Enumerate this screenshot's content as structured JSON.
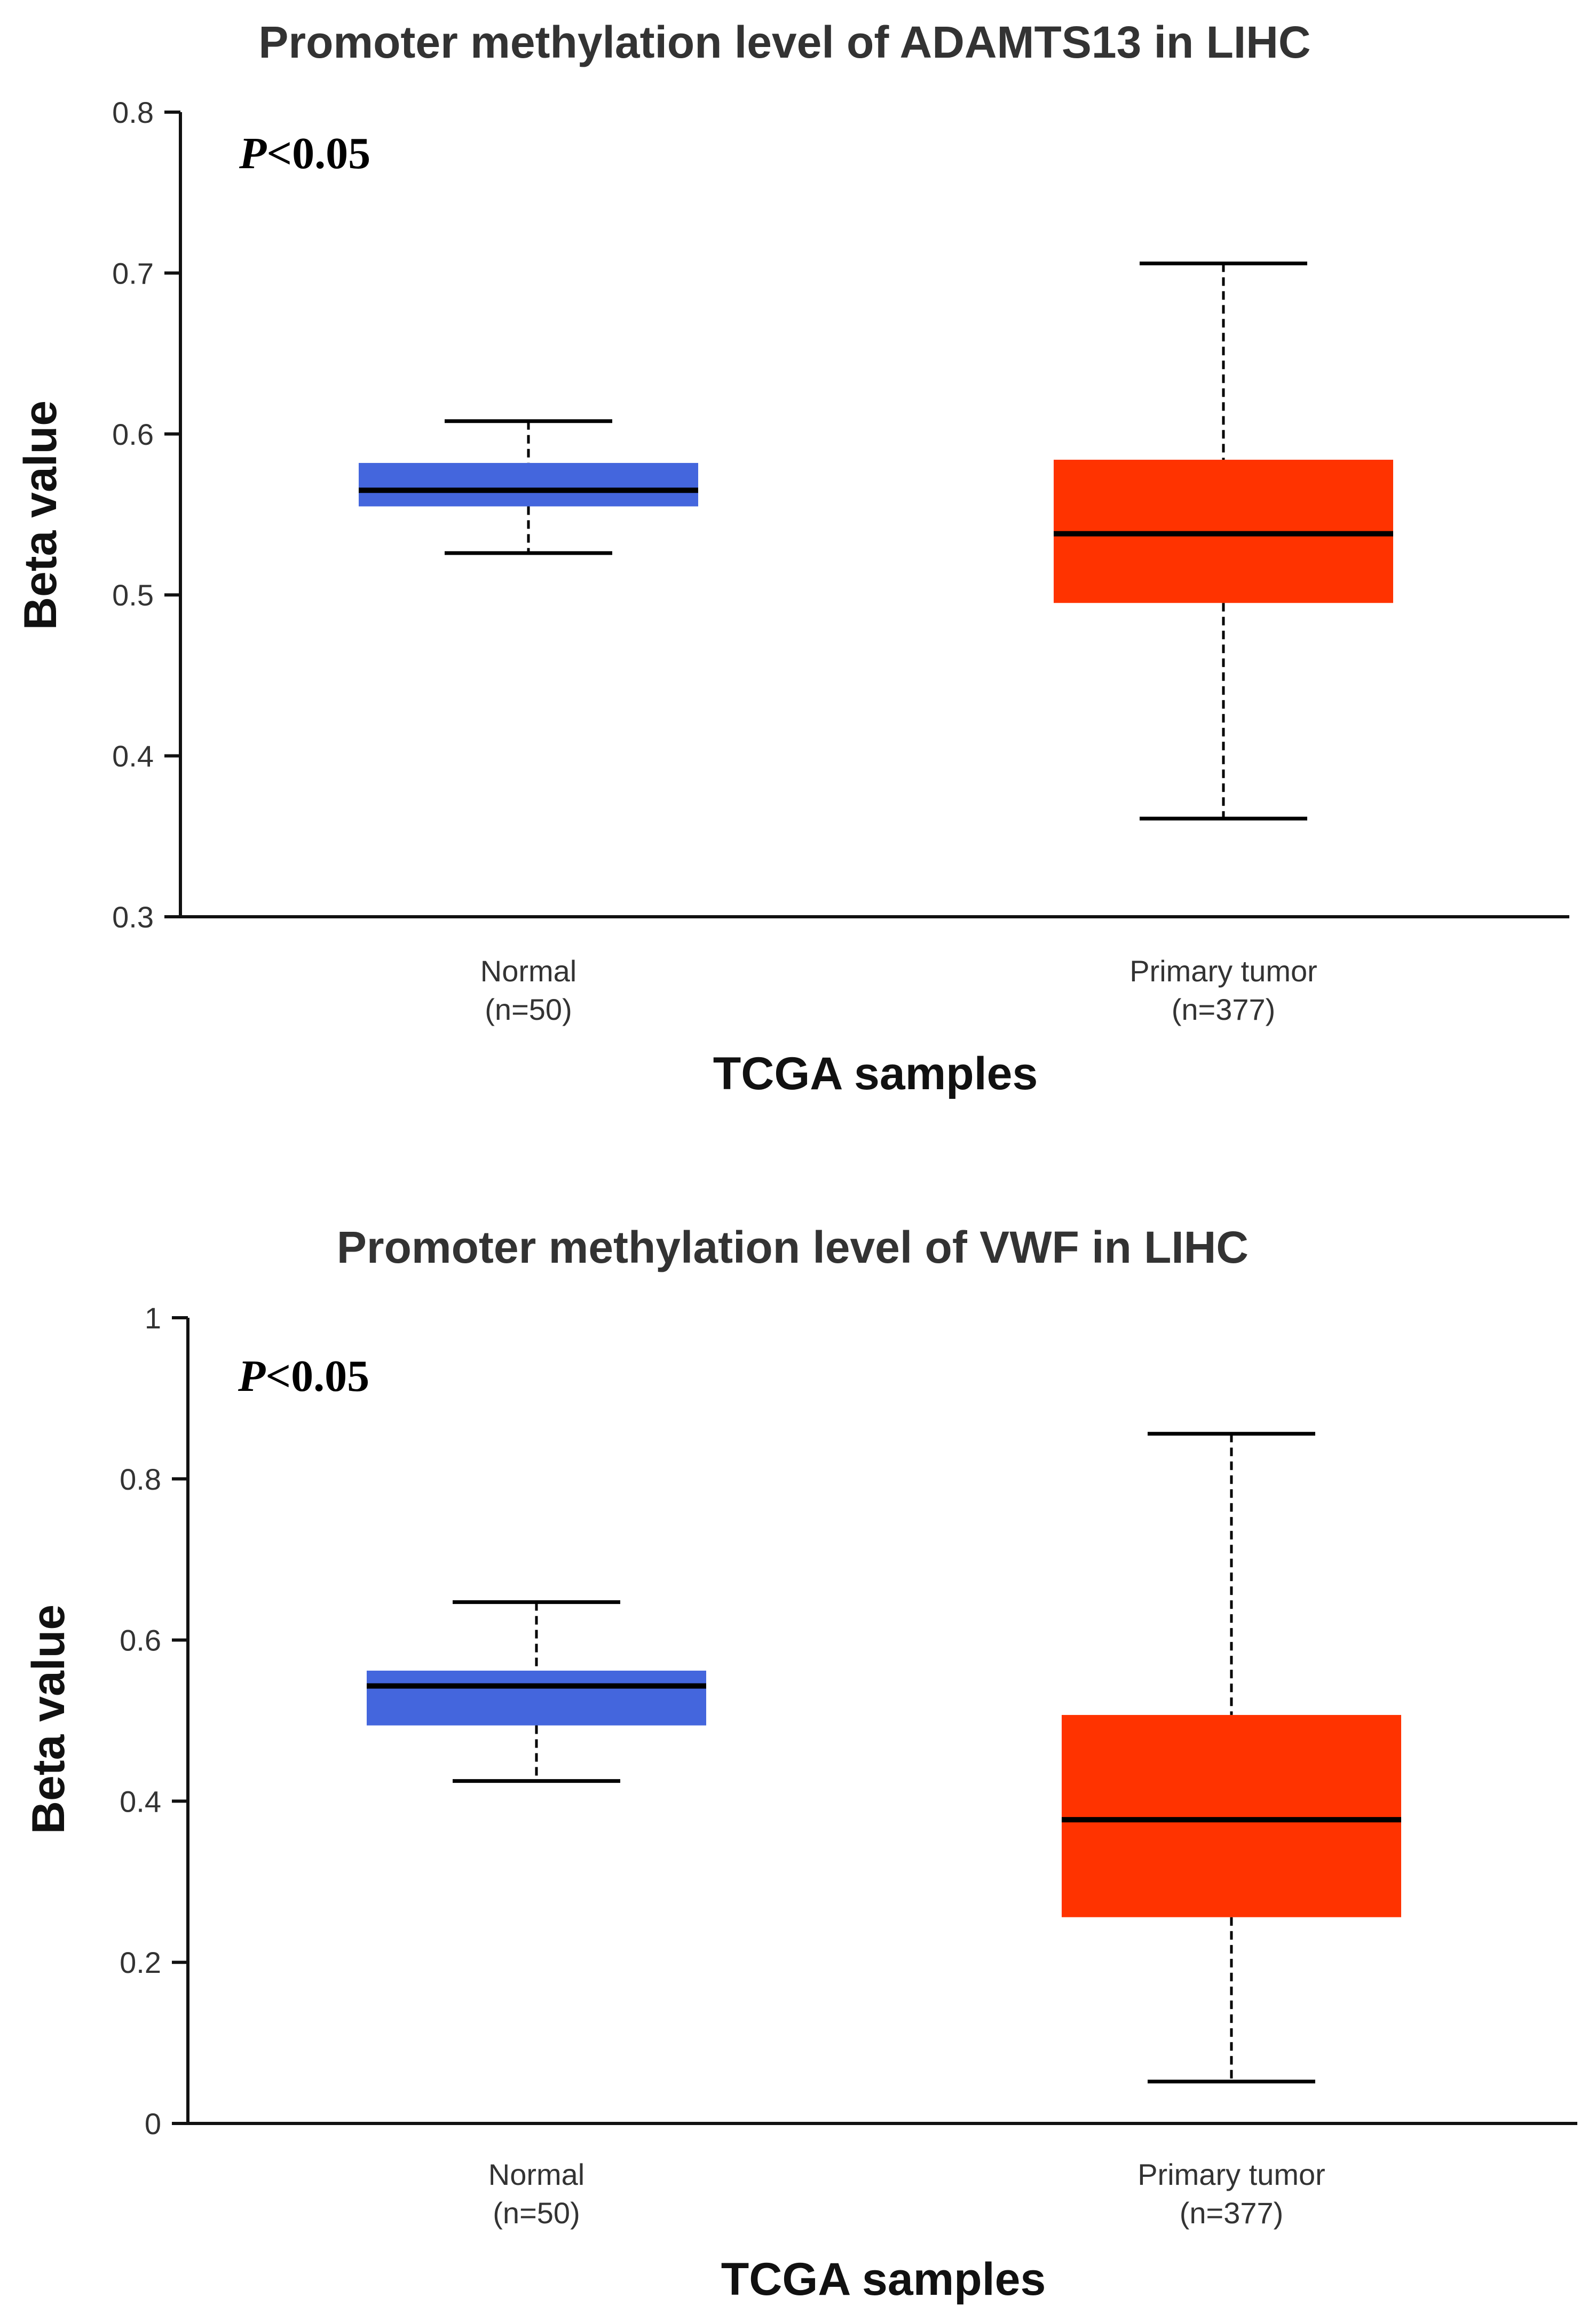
{
  "chart_data": [
    {
      "type": "box",
      "title": "Promoter methylation level of ADAMTS13 in LIHC",
      "xlabel": "TCGA samples",
      "ylabel": "Beta value",
      "ylim": [
        0.3,
        0.8
      ],
      "yticks": [
        "0.3",
        "0.4",
        "0.5",
        "0.6",
        "0.7",
        "0.8"
      ],
      "annotation": {
        "p_symbol": "P",
        "p_rest": "<0.05"
      },
      "categories": [
        {
          "name": "Normal",
          "n": "(n=50)",
          "color": "#4466dd",
          "min": 0.526,
          "q1": 0.555,
          "median": 0.565,
          "q3": 0.582,
          "max": 0.608
        },
        {
          "name": "Primary tumor",
          "n": "(n=377)",
          "color": "#ff3300",
          "min": 0.361,
          "q1": 0.495,
          "median": 0.538,
          "q3": 0.584,
          "max": 0.706
        }
      ]
    },
    {
      "type": "box",
      "title": "Promoter methylation level of VWF in LIHC",
      "xlabel": "TCGA samples",
      "ylabel": "Beta value",
      "ylim": [
        0,
        1
      ],
      "yticks": [
        "0",
        "0.2",
        "0.4",
        "0.6",
        "0.8",
        "1"
      ],
      "annotation": {
        "p_symbol": "P",
        "p_rest": "<0.05"
      },
      "categories": [
        {
          "name": "Normal",
          "n": "(n=50)",
          "color": "#4466dd",
          "min": 0.425,
          "q1": 0.494,
          "median": 0.543,
          "q3": 0.562,
          "max": 0.647
        },
        {
          "name": "Primary tumor",
          "n": "(n=377)",
          "color": "#ff3300",
          "min": 0.052,
          "q1": 0.256,
          "median": 0.377,
          "q3": 0.507,
          "max": 0.856
        }
      ]
    }
  ]
}
